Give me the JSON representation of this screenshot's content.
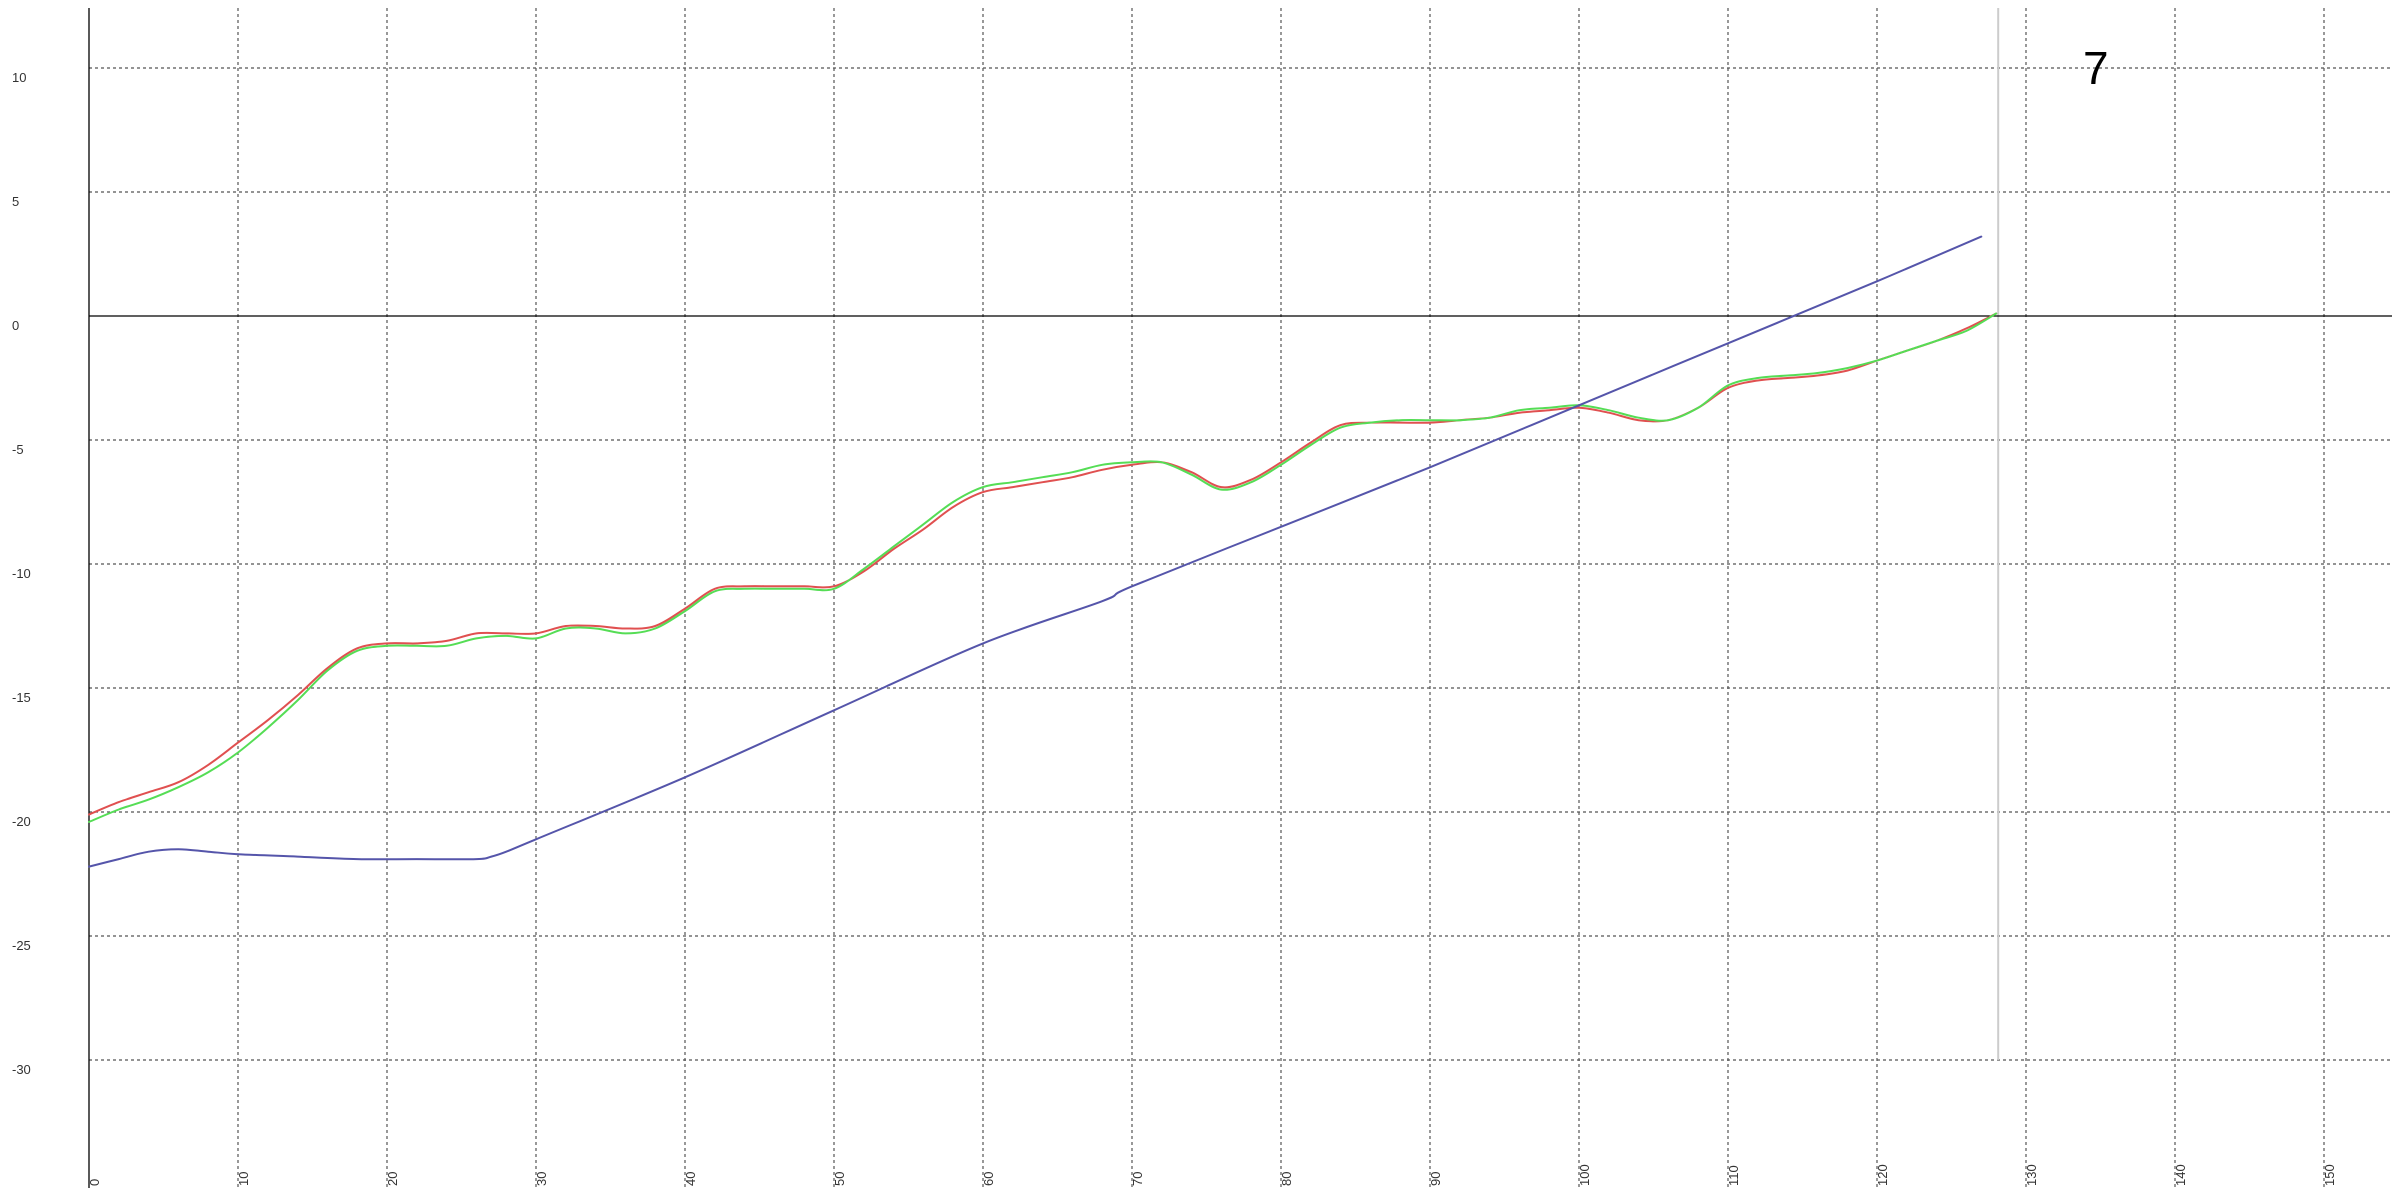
{
  "chart_data": {
    "type": "line",
    "title": "7",
    "xlabel": "",
    "ylabel": "",
    "xlim": [
      0,
      155
    ],
    "ylim": [
      -35,
      12
    ],
    "x_ticks": [
      0,
      10,
      20,
      30,
      40,
      50,
      60,
      70,
      80,
      90,
      100,
      110,
      120,
      130,
      140,
      150
    ],
    "y_ticks": [
      10,
      5,
      0,
      -5,
      -10,
      -15,
      -20,
      -25,
      -30
    ],
    "cursor_x": 128,
    "grid": true,
    "grid_style": "dotted",
    "legend": "none",
    "series": [
      {
        "color": "#e05050",
        "x": [
          0,
          2,
          4,
          6,
          8,
          10,
          12,
          14,
          16,
          18,
          20,
          22,
          24,
          26,
          28,
          30,
          32,
          34,
          36,
          38,
          40,
          42,
          44,
          46,
          48,
          50,
          52,
          54,
          56,
          58,
          60,
          62,
          64,
          66,
          68,
          70,
          72,
          74,
          76,
          78,
          80,
          82,
          84,
          86,
          88,
          90,
          92,
          94,
          96,
          98,
          100,
          102,
          104,
          106,
          108,
          110,
          112,
          114,
          116,
          118,
          120,
          122,
          124,
          126,
          128
        ],
        "values": [
          -20.1,
          -19.6,
          -19.2,
          -18.8,
          -18.1,
          -17.2,
          -16.3,
          -15.3,
          -14.2,
          -13.4,
          -13.2,
          -13.2,
          -13.1,
          -12.8,
          -12.8,
          -12.8,
          -12.5,
          -12.5,
          -12.6,
          -12.5,
          -11.8,
          -11.0,
          -10.9,
          -10.9,
          -10.9,
          -10.9,
          -10.3,
          -9.4,
          -8.6,
          -7.7,
          -7.1,
          -6.9,
          -6.7,
          -6.5,
          -6.2,
          -6.0,
          -5.9,
          -6.3,
          -6.9,
          -6.6,
          -5.9,
          -5.1,
          -4.4,
          -4.3,
          -4.3,
          -4.3,
          -4.2,
          -4.1,
          -3.9,
          -3.8,
          -3.7,
          -3.9,
          -4.2,
          -4.2,
          -3.7,
          -2.9,
          -2.6,
          -2.5,
          -2.4,
          -2.2,
          -1.8,
          -1.4,
          -1.0,
          -0.5,
          0.1
        ]
      },
      {
        "color": "#55dd55",
        "x": [
          0,
          2,
          4,
          6,
          8,
          10,
          12,
          14,
          16,
          18,
          20,
          22,
          24,
          26,
          28,
          30,
          32,
          34,
          36,
          38,
          40,
          42,
          44,
          46,
          48,
          50,
          52,
          54,
          56,
          58,
          60,
          62,
          64,
          66,
          68,
          70,
          72,
          74,
          76,
          78,
          80,
          82,
          84,
          86,
          88,
          90,
          92,
          94,
          96,
          98,
          100,
          102,
          104,
          106,
          108,
          110,
          112,
          114,
          116,
          118,
          120,
          122,
          124,
          126,
          128
        ],
        "values": [
          -20.4,
          -19.9,
          -19.5,
          -19.0,
          -18.4,
          -17.6,
          -16.6,
          -15.5,
          -14.3,
          -13.5,
          -13.3,
          -13.3,
          -13.3,
          -13.0,
          -12.9,
          -13.0,
          -12.6,
          -12.6,
          -12.8,
          -12.6,
          -11.9,
          -11.1,
          -11.0,
          -11.0,
          -11.0,
          -11.0,
          -10.2,
          -9.3,
          -8.4,
          -7.5,
          -6.9,
          -6.7,
          -6.5,
          -6.3,
          -6.0,
          -5.9,
          -5.9,
          -6.4,
          -7.0,
          -6.7,
          -6.0,
          -5.2,
          -4.5,
          -4.3,
          -4.2,
          -4.2,
          -4.2,
          -4.1,
          -3.8,
          -3.7,
          -3.6,
          -3.8,
          -4.1,
          -4.2,
          -3.7,
          -2.8,
          -2.5,
          -2.4,
          -2.3,
          -2.1,
          -1.8,
          -1.4,
          -1.0,
          -0.6,
          0.1
        ]
      },
      {
        "color": "#5555aa",
        "x": [
          0,
          2,
          4,
          6,
          8,
          10,
          14,
          18,
          22,
          26,
          27,
          28,
          30,
          40,
          50,
          60,
          68,
          70,
          80,
          90,
          100,
          110,
          120,
          127
        ],
        "values": [
          -22.2,
          -21.9,
          -21.6,
          -21.5,
          -21.6,
          -21.7,
          -21.8,
          -21.9,
          -21.9,
          -21.9,
          -21.8,
          -21.6,
          -21.1,
          -18.6,
          -15.9,
          -13.2,
          -11.5,
          -10.9,
          -8.5,
          -6.1,
          -3.6,
          -1.1,
          1.4,
          3.2
        ]
      }
    ]
  }
}
